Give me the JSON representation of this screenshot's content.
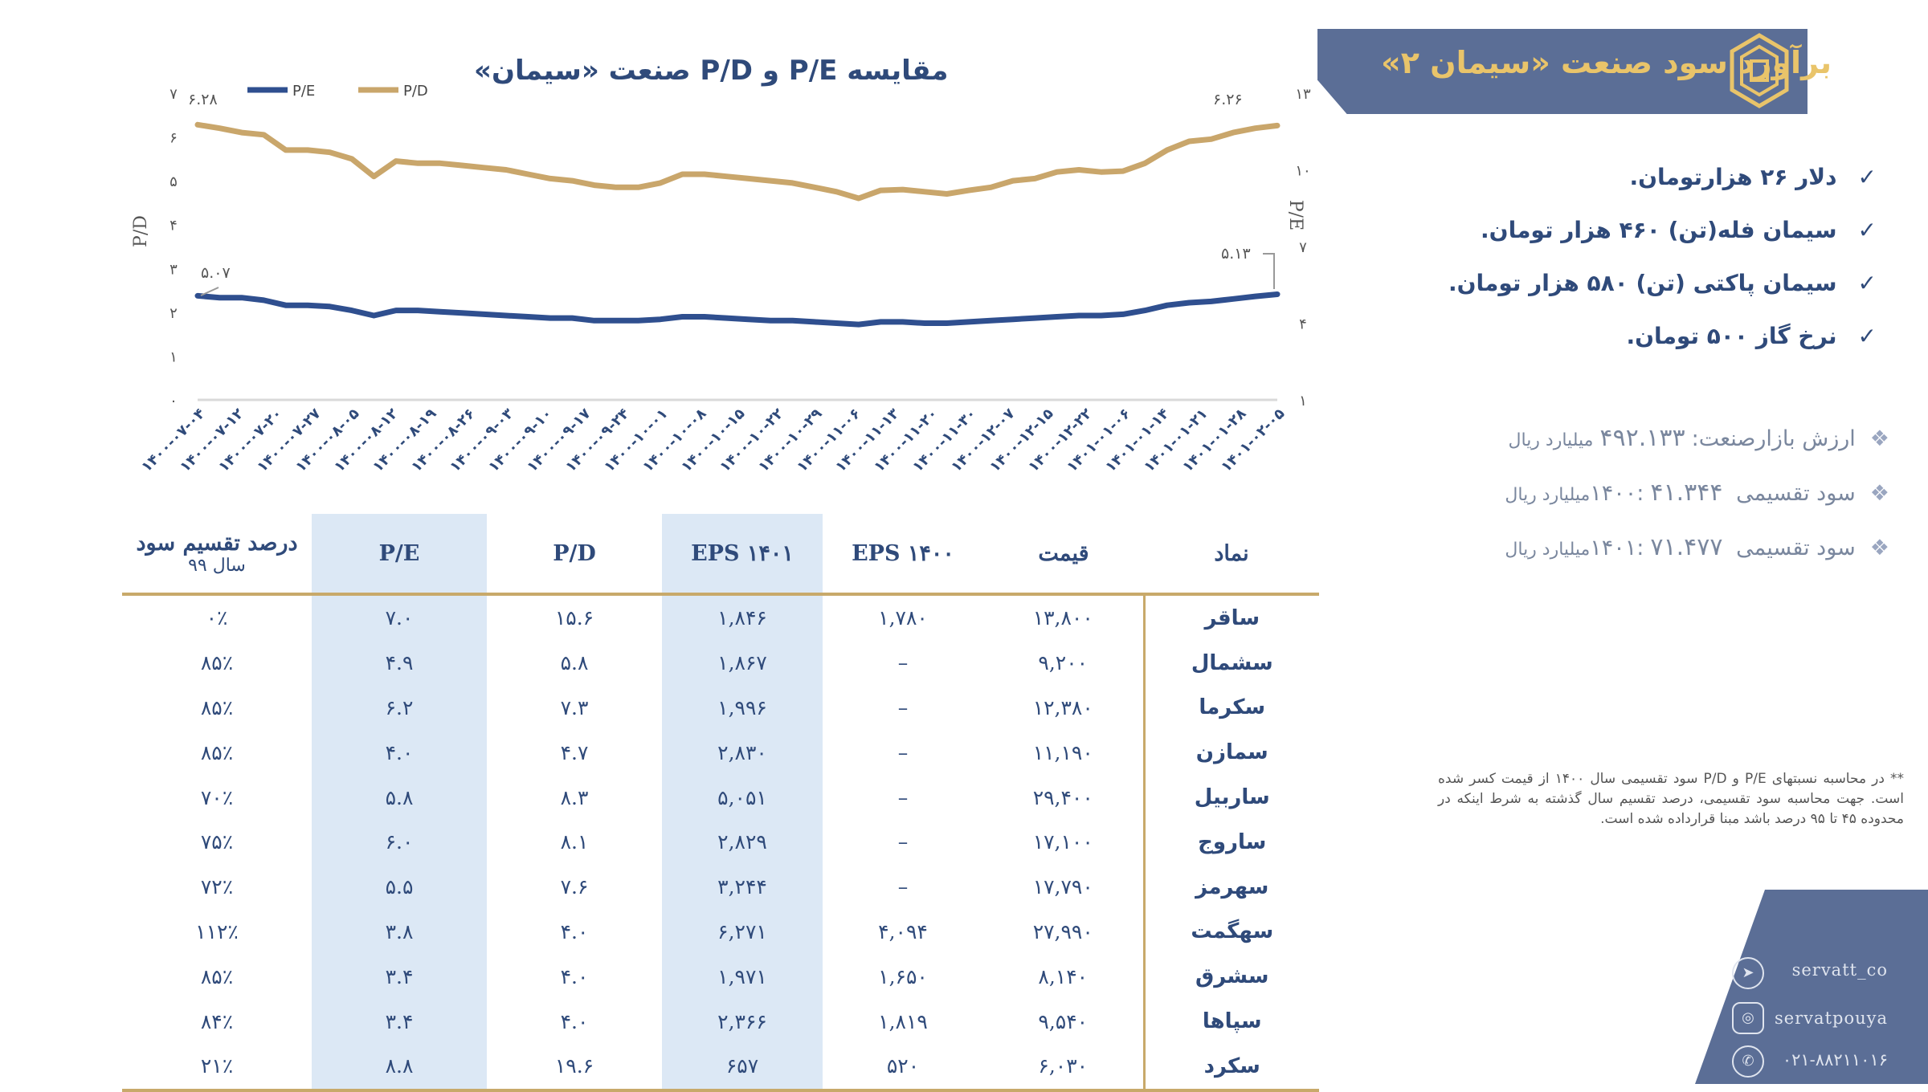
{
  "header": {
    "title": "برآورد سود صنعت «سیمان ۲»"
  },
  "bullets": [
    "دلار ۲۶ هزارتومان.",
    "سیمان فله(تن) ۴۶۰ هزار تومان.",
    "سیمان پاکتی (تن) ۵۸۰ هزار تومان.",
    "نرخ گاز ۵۰۰ تومان."
  ],
  "info": [
    {
      "label": "ارزش بازارصنعت:",
      "value": "۴۹۲.۱۳۳",
      "unit": "میلیارد ریال"
    },
    {
      "label": "سود تقسیمی ۱۴۰۰:",
      "value": "۴۱.۳۴۴",
      "unit": "میلیارد ریال"
    },
    {
      "label": "سود تقسیمی ۱۴۰۱:",
      "value": "۷۱.۴۷۷",
      "unit": "میلیارد ریال"
    }
  ],
  "footnote": "** در محاسبه نسبتهای P/E و P/D  سود تقسیمی سال ۱۴۰۰ از قیمت کسر شده است. جهت محاسبه سود تقسیمی، درصد تقسیم سال گذشته به شرط اینکه در محدوده ۴۵ تا ۹۵ درصد باشد مبنا قرارداده شده است.",
  "social": {
    "telegram": "servatt_co",
    "instagram": "servatpouya",
    "phone": "۰۲۱-۸۸۲۱۱۰۱۶"
  },
  "colors": {
    "pe": "#2f4f8f",
    "pd": "#c9a66b",
    "accent": "#5b6e96",
    "gold": "#e9c46a",
    "highlight": "#dce8f5"
  },
  "chart_data": {
    "type": "line",
    "title": "مقایسه P/E و P/D صنعت «سیمان»",
    "left_axis": {
      "label": "P/D",
      "ylim": [
        0,
        7
      ],
      "ticks": [
        "۰",
        "۱",
        "۲",
        "۳",
        "۴",
        "۵",
        "۶",
        "۷"
      ]
    },
    "right_axis": {
      "label": "P/E",
      "ylim": [
        1,
        13
      ],
      "ticks": [
        "۱",
        "۴",
        "۷",
        "۱۰",
        "۱۳"
      ]
    },
    "legend": [
      "P/E",
      "P/D"
    ],
    "x_ticks": [
      "۱۴۰۰-۰۷-۰۴",
      "۱۴۰۰-۰۷-۱۲",
      "۱۴۰۰-۰۷-۲۰",
      "۱۴۰۰-۰۷-۲۷",
      "۱۴۰۰-۰۸-۰۵",
      "۱۴۰۰-۰۸-۱۲",
      "۱۴۰۰-۰۸-۱۹",
      "۱۴۰۰-۰۸-۲۶",
      "۱۴۰۰-۰۹-۰۳",
      "۱۴۰۰-۰۹-۱۰",
      "۱۴۰۰-۰۹-۱۷",
      "۱۴۰۰-۰۹-۲۴",
      "۱۴۰۰-۱۰-۰۱",
      "۱۴۰۰-۱۰-۰۸",
      "۱۴۰۰-۱۰-۱۵",
      "۱۴۰۰-۱۰-۲۲",
      "۱۴۰۰-۱۰-۲۹",
      "۱۴۰۰-۱۱-۰۶",
      "۱۴۰۰-۱۱-۱۳",
      "۱۴۰۰-۱۱-۲۰",
      "۱۴۰۰-۱۱-۳۰",
      "۱۴۰۰-۱۲-۰۷",
      "۱۴۰۰-۱۲-۱۵",
      "۱۴۰۰-۱۲-۲۲",
      "۱۴۰۱-۰۱-۰۶",
      "۱۴۰۱-۰۱-۱۴",
      "۱۴۰۱-۰۱-۲۱",
      "۱۴۰۱-۰۱-۲۸",
      "۱۴۰۱-۰۲-۰۵"
    ],
    "annotations": {
      "pd_start": "۶.۲۸",
      "pd_end": "۶.۲۶",
      "pe_start": "۵.۰۷",
      "pe_end": "۵.۱۳"
    },
    "series": [
      {
        "name": "P/D",
        "axis": "left",
        "values": [
          6.28,
          6.2,
          6.1,
          6.05,
          5.7,
          5.7,
          5.65,
          5.5,
          5.1,
          5.45,
          5.4,
          5.4,
          5.35,
          5.3,
          5.25,
          5.15,
          5.05,
          5.0,
          4.9,
          4.85,
          4.85,
          4.95,
          5.15,
          5.15,
          5.1,
          5.05,
          5.0,
          4.95,
          4.85,
          4.75,
          4.6,
          4.78,
          4.8,
          4.75,
          4.7,
          4.78,
          4.85,
          5.0,
          5.05,
          5.2,
          5.25,
          5.2,
          5.22,
          5.4,
          5.7,
          5.9,
          5.95,
          6.1,
          6.2,
          6.26
        ]
      },
      {
        "name": "P/E",
        "axis": "right",
        "values": [
          5.07,
          5.0,
          5.0,
          4.9,
          4.7,
          4.7,
          4.65,
          4.5,
          4.3,
          4.5,
          4.5,
          4.45,
          4.4,
          4.35,
          4.3,
          4.25,
          4.2,
          4.2,
          4.1,
          4.1,
          4.1,
          4.15,
          4.25,
          4.25,
          4.2,
          4.15,
          4.1,
          4.1,
          4.05,
          4.0,
          3.95,
          4.05,
          4.05,
          4.0,
          4.0,
          4.05,
          4.1,
          4.15,
          4.2,
          4.25,
          4.3,
          4.3,
          4.35,
          4.5,
          4.7,
          4.8,
          4.85,
          4.95,
          5.05,
          5.13
        ]
      }
    ]
  },
  "table": {
    "headers": [
      "نماد",
      "قیمت",
      "EPS ۱۴۰۰",
      "EPS ۱۴۰۱",
      "P/D",
      "P/E",
      "درصد تقسیم سود"
    ],
    "header_sub": "سال ۹۹",
    "rows": [
      [
        "ساقر",
        "۱۳,۸۰۰",
        "۱,۷۸۰",
        "۱,۸۴۶",
        "۱۵.۶",
        "۷.۰",
        "۰٪"
      ],
      [
        "سشمال",
        "۹,۲۰۰",
        "–",
        "۱,۸۶۷",
        "۵.۸",
        "۴.۹",
        "۸۵٪"
      ],
      [
        "سکرما",
        "۱۲,۳۸۰",
        "–",
        "۱,۹۹۶",
        "۷.۳",
        "۶.۲",
        "۸۵٪"
      ],
      [
        "سمازن",
        "۱۱,۱۹۰",
        "–",
        "۲,۸۳۰",
        "۴.۷",
        "۴.۰",
        "۸۵٪"
      ],
      [
        "ساربیل",
        "۲۹,۴۰۰",
        "–",
        "۵,۰۵۱",
        "۸.۳",
        "۵.۸",
        "۷۰٪"
      ],
      [
        "ساروج",
        "۱۷,۱۰۰",
        "–",
        "۲,۸۲۹",
        "۸.۱",
        "۶.۰",
        "۷۵٪"
      ],
      [
        "سهرمز",
        "۱۷,۷۹۰",
        "–",
        "۳,۲۴۴",
        "۷.۶",
        "۵.۵",
        "۷۲٪"
      ],
      [
        "سهگمت",
        "۲۷,۹۹۰",
        "۴,۰۹۴",
        "۶,۲۷۱",
        "۴.۰",
        "۳.۸",
        "۱۱۲٪"
      ],
      [
        "سشرق",
        "۸,۱۴۰",
        "۱,۶۵۰",
        "۱,۹۷۱",
        "۴.۰",
        "۳.۴",
        "۸۵٪"
      ],
      [
        "سپاها",
        "۹,۵۴۰",
        "۱,۸۱۹",
        "۲,۳۶۶",
        "۴.۰",
        "۳.۴",
        "۸۴٪"
      ],
      [
        "سکرد",
        "۶,۰۳۰",
        "۵۲۰",
        "۶۵۷",
        "۱۹.۶",
        "۸.۸",
        "۲۱٪"
      ]
    ]
  }
}
